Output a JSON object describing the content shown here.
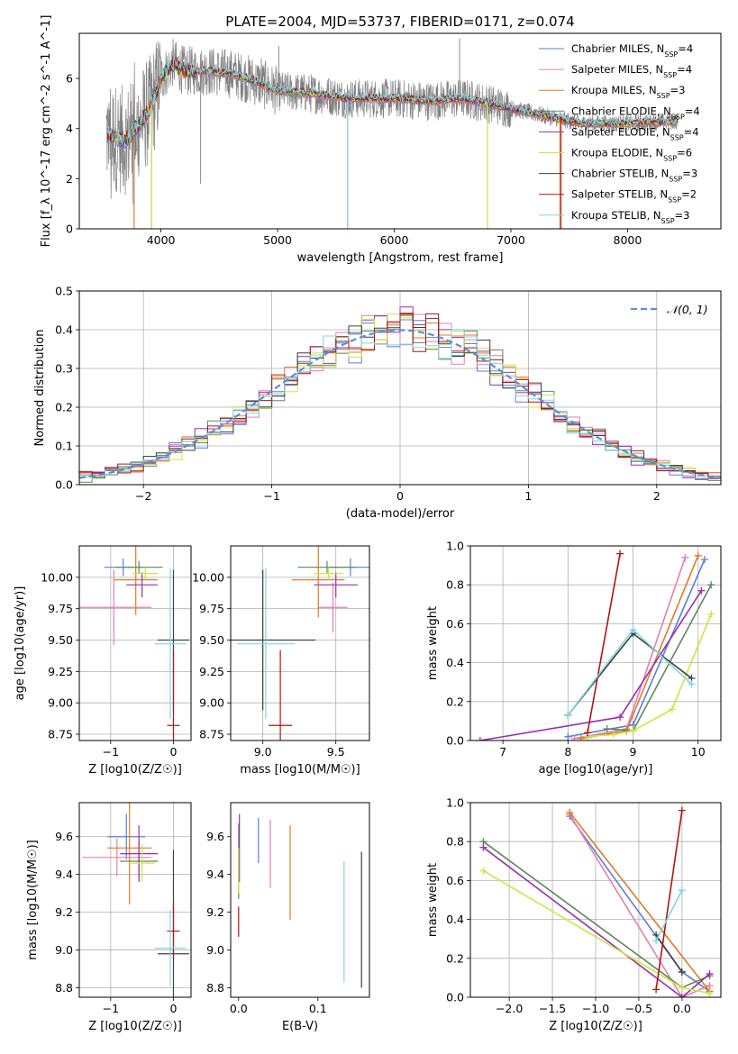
{
  "figure_title": "PLATE=2004, MJD=53737, FIBERID=0171, z=0.074",
  "models": [
    {
      "label": "Chabrier MILES, N",
      "sub": "SSP",
      "tail": "=4",
      "color": "#5b7fd6"
    },
    {
      "label": "Salpeter MILES, N",
      "sub": "SSP",
      "tail": "=4",
      "color": "#e47fb2"
    },
    {
      "label": "Kroupa MILES, N",
      "sub": "SSP",
      "tail": "=3",
      "color": "#e07a20"
    },
    {
      "label": "Chabrier ELODIE, N",
      "sub": "SSP",
      "tail": "=4",
      "color": "#5a8a5a"
    },
    {
      "label": "Salpeter ELODIE, N",
      "sub": "SSP",
      "tail": "=4",
      "color": "#9a2fb0"
    },
    {
      "label": "Kroupa ELODIE, N",
      "sub": "SSP",
      "tail": "=6",
      "color": "#c9e840"
    },
    {
      "label": "Chabrier STELIB, N",
      "sub": "SSP",
      "tail": "=3",
      "color": "#404040"
    },
    {
      "label": "Salpeter STELIB, N",
      "sub": "SSP",
      "tail": "=2",
      "color": "#b01414"
    },
    {
      "label": "Kroupa STELIB, N",
      "sub": "SSP",
      "tail": "=3",
      "color": "#7fd6e0"
    }
  ],
  "chart_data": [
    {
      "id": "spectrum",
      "type": "line",
      "title": "PLATE=2004, MJD=53737, FIBERID=0171, z=0.074",
      "xlabel": "wavelength [Angstrom, rest frame]",
      "ylabel": "Flux [f_λ 10^-17 erg cm^-2 s^-1 A^-1]",
      "xlim": [
        3300,
        8800
      ],
      "ylim": [
        0,
        7.8
      ],
      "xticks": [
        4000,
        5000,
        6000,
        7000,
        8000
      ],
      "yticks": [
        0,
        2,
        4,
        6
      ],
      "data_color": "#808080",
      "data_x_range": [
        3530,
        8430
      ],
      "continuum": [
        [
          3530,
          3.8
        ],
        [
          3700,
          3.5
        ],
        [
          3800,
          4.1
        ],
        [
          3900,
          4.7
        ],
        [
          3950,
          5.3
        ],
        [
          4000,
          6.0
        ],
        [
          4100,
          6.6
        ],
        [
          4200,
          6.3
        ],
        [
          4400,
          6.3
        ],
        [
          4600,
          6.2
        ],
        [
          4800,
          5.9
        ],
        [
          5000,
          5.5
        ],
        [
          5300,
          5.4
        ],
        [
          5600,
          5.2
        ],
        [
          6000,
          5.2
        ],
        [
          6300,
          5.1
        ],
        [
          6600,
          5.2
        ],
        [
          6900,
          4.9
        ],
        [
          7200,
          4.6
        ],
        [
          7600,
          4.2
        ],
        [
          8000,
          4.2
        ],
        [
          8430,
          4.3
        ]
      ],
      "spikes": [
        [
          3920,
          0.0
        ],
        [
          4340,
          1.8
        ],
        [
          4860,
          6.8
        ],
        [
          5010,
          7.3
        ],
        [
          5600,
          0.0
        ],
        [
          6560,
          7.6
        ],
        [
          6800,
          0.0
        ],
        [
          7420,
          0.0
        ],
        [
          3770,
          0.0
        ]
      ],
      "grid": false,
      "legend_position": "upper right"
    },
    {
      "id": "residuals",
      "type": "histogram",
      "xlabel": "(data-model)/error",
      "ylabel": "Normed distribution",
      "xlim": [
        -2.5,
        2.5
      ],
      "ylim": [
        0,
        0.5
      ],
      "xticks": [
        -2,
        -1,
        0,
        1,
        2
      ],
      "yticks": [
        0.0,
        0.1,
        0.2,
        0.3,
        0.4,
        0.5
      ],
      "bin_width": 0.1,
      "reference": {
        "name": "N(0,1)",
        "color": "#5b8fd6"
      },
      "grid": true,
      "legend_position": "upper right"
    },
    {
      "id": "age_vs_z",
      "type": "errorbar",
      "xlabel": "Z [log10(Z/Z☉)]",
      "ylabel": "age  [log10(age/yr)]",
      "xlim": [
        -1.5,
        0.28
      ],
      "ylim": [
        8.7,
        10.25
      ],
      "xticks": [
        -1,
        0
      ],
      "yticks": [
        8.75,
        9.0,
        9.25,
        9.5,
        9.75,
        10.0
      ],
      "points": [
        {
          "model": 0,
          "x": -0.8,
          "y": 10.08,
          "xerr": 0.3,
          "yerr": 0.07
        },
        {
          "model": 1,
          "x": -0.95,
          "y": 9.76,
          "xerr": 0.6,
          "yerr": 0.3
        },
        {
          "model": 2,
          "x": -0.6,
          "y": 9.98,
          "xerr": 0.35,
          "yerr": 0.28
        },
        {
          "model": 3,
          "x": -0.55,
          "y": 10.08,
          "xerr": 0.38,
          "yerr": 0.05
        },
        {
          "model": 4,
          "x": -0.5,
          "y": 9.94,
          "xerr": 0.25,
          "yerr": 0.1
        },
        {
          "model": 5,
          "x": -0.45,
          "y": 10.03,
          "xerr": 0.2,
          "yerr": 0.05
        },
        {
          "model": 6,
          "x": 0.0,
          "y": 9.5,
          "xerr": 0.25,
          "yerr": 0.56
        },
        {
          "model": 7,
          "x": 0.0,
          "y": 8.82,
          "xerr": 0.1,
          "yerr": 0.6
        },
        {
          "model": 8,
          "x": -0.05,
          "y": 9.47,
          "xerr": 0.25,
          "yerr": 0.6
        }
      ],
      "grid": true
    },
    {
      "id": "age_vs_mass",
      "type": "errorbar",
      "xlabel": "mass [log10(M/M☉)]",
      "ylabel": "",
      "xlim": [
        8.78,
        9.73
      ],
      "ylim": [
        8.7,
        10.25
      ],
      "xticks": [
        9.0,
        9.5
      ],
      "yticks": [
        8.75,
        9.0,
        9.25,
        9.5,
        9.75,
        10.0
      ],
      "points": [
        {
          "model": 0,
          "x": 9.6,
          "y": 10.08,
          "xerr": 0.15,
          "yerr": 0.07
        },
        {
          "model": 1,
          "x": 9.48,
          "y": 9.76,
          "xerr": 0.1,
          "yerr": 0.2
        },
        {
          "model": 2,
          "x": 9.38,
          "y": 9.98,
          "xerr": 0.18,
          "yerr": 0.3
        },
        {
          "model": 3,
          "x": 9.44,
          "y": 10.08,
          "xerr": 0.2,
          "yerr": 0.05
        },
        {
          "model": 4,
          "x": 9.5,
          "y": 9.94,
          "xerr": 0.15,
          "yerr": 0.1
        },
        {
          "model": 5,
          "x": 9.45,
          "y": 10.03,
          "xerr": 0.1,
          "yerr": 0.05
        },
        {
          "model": 6,
          "x": 9.0,
          "y": 9.5,
          "xerr": 0.36,
          "yerr": 0.56
        },
        {
          "model": 7,
          "x": 9.12,
          "y": 8.82,
          "xerr": 0.08,
          "yerr": 0.6
        },
        {
          "model": 8,
          "x": 9.02,
          "y": 9.47,
          "xerr": 0.2,
          "yerr": 0.6
        }
      ],
      "grid": true
    },
    {
      "id": "weight_vs_age",
      "type": "line",
      "xlabel": "age  [log10(age/yr)]",
      "ylabel": "mass weight",
      "xlim": [
        6.5,
        10.35
      ],
      "ylim": [
        0,
        1.0
      ],
      "xticks": [
        7,
        8,
        9,
        10
      ],
      "yticks": [
        0.0,
        0.2,
        0.4,
        0.6,
        0.8,
        1.0
      ],
      "series": [
        {
          "model": 0,
          "x": [
            8.0,
            9.0,
            10.1
          ],
          "y": [
            0.02,
            0.08,
            0.93
          ]
        },
        {
          "model": 1,
          "x": [
            8.1,
            8.9,
            9.8
          ],
          "y": [
            0.01,
            0.06,
            0.94
          ]
        },
        {
          "model": 2,
          "x": [
            8.2,
            8.9,
            10.0
          ],
          "y": [
            0.01,
            0.05,
            0.95
          ]
        },
        {
          "model": 3,
          "x": [
            8.6,
            9.0,
            10.2
          ],
          "y": [
            0.06,
            0.05,
            0.8
          ]
        },
        {
          "model": 4,
          "x": [
            6.65,
            8.8,
            10.05
          ],
          "y": [
            0.0,
            0.12,
            0.77
          ]
        },
        {
          "model": 5,
          "x": [
            8.3,
            8.7,
            9.0,
            9.6,
            10.2
          ],
          "y": [
            0.02,
            0.03,
            0.05,
            0.16,
            0.65
          ]
        },
        {
          "model": 6,
          "x": [
            8.0,
            9.0,
            9.9
          ],
          "y": [
            0.13,
            0.55,
            0.32
          ]
        },
        {
          "model": 7,
          "x": [
            8.3,
            8.8
          ],
          "y": [
            0.04,
            0.96
          ]
        },
        {
          "model": 8,
          "x": [
            8.0,
            9.0,
            9.9
          ],
          "y": [
            0.13,
            0.57,
            0.29
          ]
        }
      ],
      "grid": true
    },
    {
      "id": "mass_vs_z",
      "type": "errorbar",
      "xlabel": "Z [log10(Z/Z☉)]",
      "ylabel": "mass [log10(M/M☉)]",
      "xlim": [
        -1.5,
        0.28
      ],
      "ylim": [
        8.75,
        9.78
      ],
      "xticks": [
        -1,
        0
      ],
      "yticks": [
        8.8,
        9.0,
        9.2,
        9.4,
        9.6
      ],
      "points": [
        {
          "model": 0,
          "x": -0.75,
          "y": 9.6,
          "xerr": 0.3,
          "yerr": 0.12
        },
        {
          "model": 1,
          "x": -0.9,
          "y": 9.49,
          "xerr": 0.55,
          "yerr": 0.1
        },
        {
          "model": 2,
          "x": -0.7,
          "y": 9.54,
          "xerr": 0.35,
          "yerr": 0.3
        },
        {
          "model": 3,
          "x": -0.55,
          "y": 9.47,
          "xerr": 0.3,
          "yerr": 0.1
        },
        {
          "model": 4,
          "x": -0.55,
          "y": 9.51,
          "xerr": 0.3,
          "yerr": 0.15
        },
        {
          "model": 5,
          "x": -0.5,
          "y": 9.46,
          "xerr": 0.2,
          "yerr": 0.1
        },
        {
          "model": 6,
          "x": 0.0,
          "y": 8.98,
          "xerr": 0.25,
          "yerr": 0.55
        },
        {
          "model": 7,
          "x": 0.0,
          "y": 9.1,
          "xerr": 0.1,
          "yerr": 0.15
        },
        {
          "model": 8,
          "x": -0.05,
          "y": 9.01,
          "xerr": 0.25,
          "yerr": 0.2
        }
      ],
      "grid": true
    },
    {
      "id": "mass_vs_ebv",
      "type": "errorbar",
      "xlabel": "E(B-V)",
      "ylabel": "",
      "xlim": [
        -0.01,
        0.165
      ],
      "ylim": [
        8.75,
        9.78
      ],
      "xticks": [
        0.0,
        0.1
      ],
      "yticks": [
        8.8,
        9.0,
        9.2,
        9.4,
        9.6
      ],
      "points": [
        {
          "model": 0,
          "x": 0.025,
          "y": 9.58,
          "xerr": 0,
          "yerr": 0.12
        },
        {
          "model": 1,
          "x": 0.04,
          "y": 9.51,
          "xerr": 0,
          "yerr": 0.18
        },
        {
          "model": 2,
          "x": 0.065,
          "y": 9.41,
          "xerr": 0,
          "yerr": 0.25
        },
        {
          "model": 3,
          "x": 0.0,
          "y": 9.47,
          "xerr": 0,
          "yerr": 0.2
        },
        {
          "model": 4,
          "x": 0.001,
          "y": 9.54,
          "xerr": 0,
          "yerr": 0.18
        },
        {
          "model": 5,
          "x": 0.0,
          "y": 9.42,
          "xerr": 0,
          "yerr": 0.12
        },
        {
          "model": 6,
          "x": 0.155,
          "y": 9.16,
          "xerr": 0,
          "yerr": 0.36
        },
        {
          "model": 7,
          "x": 0.0,
          "y": 9.15,
          "xerr": 0,
          "yerr": 0.08
        },
        {
          "model": 8,
          "x": 0.133,
          "y": 9.15,
          "xerr": 0,
          "yerr": 0.32
        }
      ],
      "grid": false
    },
    {
      "id": "weight_vs_z",
      "type": "line",
      "xlabel": "Z [log10(Z/Z☉)]",
      "ylabel": "mass weight",
      "xlim": [
        -2.45,
        0.45
      ],
      "ylim": [
        0,
        1.0
      ],
      "xticks": [
        -2.0,
        -1.5,
        -1.0,
        -0.5,
        0.0
      ],
      "yticks": [
        0.0,
        0.2,
        0.4,
        0.6,
        0.8,
        1.0
      ],
      "series": [
        {
          "model": 0,
          "x": [
            -1.3,
            0.0,
            0.32
          ],
          "y": [
            0.93,
            0.13,
            0.03
          ]
        },
        {
          "model": 1,
          "x": [
            -1.3,
            0.0,
            0.32
          ],
          "y": [
            0.94,
            0.0,
            0.06
          ]
        },
        {
          "model": 2,
          "x": [
            -1.3,
            0.32
          ],
          "y": [
            0.95,
            0.03
          ]
        },
        {
          "model": 3,
          "x": [
            -2.3,
            0.0,
            0.32
          ],
          "y": [
            0.8,
            0.05,
            0.11
          ]
        },
        {
          "model": 4,
          "x": [
            -2.3,
            0.0,
            0.32
          ],
          "y": [
            0.77,
            0.0,
            0.12
          ]
        },
        {
          "model": 5,
          "x": [
            -2.3,
            0.0,
            0.32
          ],
          "y": [
            0.65,
            0.05,
            0.02
          ]
        },
        {
          "model": 6,
          "x": [
            -0.3,
            0.0
          ],
          "y": [
            0.32,
            0.13
          ]
        },
        {
          "model": 7,
          "x": [
            -0.3,
            0.0
          ],
          "y": [
            0.04,
            0.96
          ]
        },
        {
          "model": 8,
          "x": [
            -0.3,
            0.0
          ],
          "y": [
            0.29,
            0.55
          ]
        }
      ],
      "grid": true
    }
  ]
}
